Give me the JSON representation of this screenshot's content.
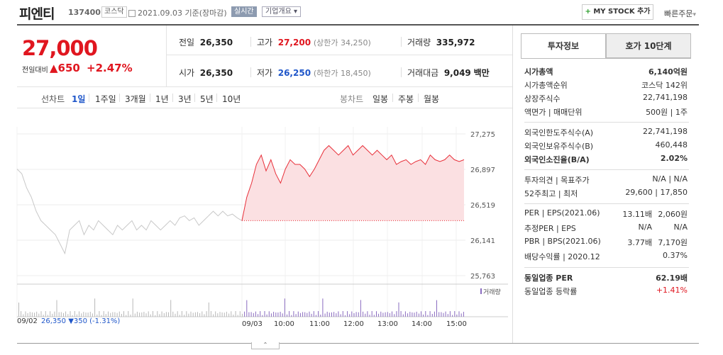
{
  "header": {
    "name": "피엔티",
    "code": "137400",
    "market": "코스닥",
    "date": "2021.09.03",
    "basis": "기준(장마감)",
    "live": "실시간",
    "corp_overview": "기업개요",
    "mystock": "MY STOCK 추가",
    "quick_order": "빠른주문"
  },
  "price": {
    "current": "27,000",
    "diff_label": "전일대비",
    "diff_value": "650",
    "diff_pct": "+2.47%"
  },
  "summary": {
    "prev_close_label": "전일",
    "prev_close": "26,350",
    "high_label": "고가",
    "high": "27,200",
    "upper_limit": "(상한가 34,250)",
    "volume_label": "거래량",
    "volume": "335,972",
    "open_label": "시가",
    "open": "26,350",
    "low_label": "저가",
    "low": "26,250",
    "lower_limit": "(하한가 18,450)",
    "amount_label": "거래대금",
    "amount": "9,049",
    "amount_unit": "백만"
  },
  "periods": {
    "line_label": "선차트",
    "line_items": [
      "1일",
      "1주일",
      "3개월",
      "1년",
      "3년",
      "5년",
      "10년"
    ],
    "candle_label": "봉차트",
    "candle_items": [
      "일봉",
      "주봉",
      "월봉"
    ]
  },
  "chart_data": {
    "type": "line",
    "y_ticks": [
      "27,275",
      "26,897",
      "26,519",
      "26,141",
      "25,763"
    ],
    "ylim": [
      25763,
      27275
    ],
    "x_labels": [
      "09/03",
      "10:00",
      "11:00",
      "12:00",
      "13:00",
      "14:00",
      "15:00"
    ],
    "prev_day_label": "09/02",
    "prev_day_summary": "26,350",
    "prev_day_change": "▼350",
    "prev_day_pct": "(-1.31%)",
    "volume_label": "거래량",
    "base_price": 26350,
    "series": [
      {
        "values": [
          26350,
          26600,
          26750,
          26950,
          27050,
          26880,
          27000,
          26850,
          26750,
          26900,
          27000,
          26950,
          26950,
          26900,
          26820,
          26900,
          27000,
          27100,
          27150,
          27100,
          27050,
          27100,
          27150,
          27050,
          27100,
          27150,
          27100,
          27050,
          27100,
          27050,
          27000,
          27050,
          26950,
          26980,
          27000,
          26950,
          26980,
          27000,
          26950,
          27050,
          27000,
          26980,
          27000,
          27050,
          27000,
          26980,
          27000
        ]
      }
    ]
  },
  "side": {
    "tab_invest": "투자정보",
    "tab_hoga": "호가 10단계",
    "rows1": [
      {
        "l": "시가총액",
        "r": "6,140억원",
        "bold": true
      },
      {
        "l": "시가총액순위",
        "r": "코스닥 142위"
      },
      {
        "l": "상장주식수",
        "r": "22,741,198"
      },
      {
        "l": "액면가 | 매매단위",
        "r": "500원 | 1주"
      }
    ],
    "rows2": [
      {
        "l": "외국인한도주식수(A)",
        "r": "22,741,198"
      },
      {
        "l": "외국인보유주식수(B)",
        "r": "460,448"
      },
      {
        "l": "외국인소진율(B/A)",
        "r": "2.02%",
        "bold": true
      }
    ],
    "rows3": [
      {
        "l": "투자의견 | 목표주가",
        "r": "N/A | N/A"
      },
      {
        "l": "52주최고 | 최저",
        "r": "29,600 | 17,850"
      }
    ],
    "rows4": [
      {
        "l": "PER | EPS(2021.06)",
        "m": "13.11배",
        "r": "2,060원"
      },
      {
        "l": "추정PER | EPS",
        "m": "N/A",
        "r": "N/A"
      },
      {
        "l": "PBR | BPS(2021.06)",
        "m": "3.77배",
        "r": "7,170원"
      },
      {
        "l": "배당수익률 | 2020.12",
        "m": "",
        "r": "0.37%"
      }
    ],
    "rows5": [
      {
        "l": "동일업종 PER",
        "r": "62.19배",
        "bold": true
      },
      {
        "l": "동일업종 등락률",
        "r": "+1.41%",
        "red": true
      }
    ]
  }
}
